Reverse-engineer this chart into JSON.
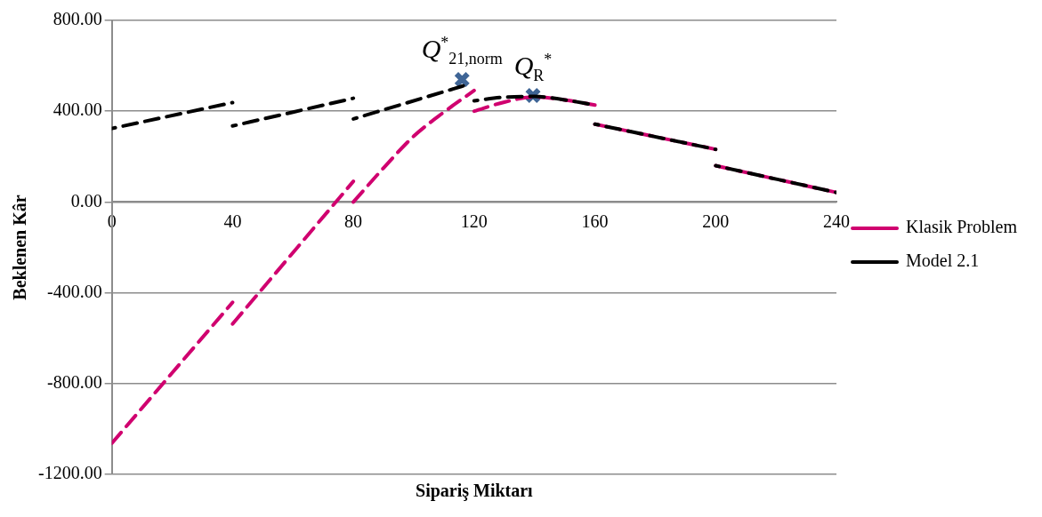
{
  "chart_data": {
    "type": "line",
    "xlabel": "Sipariş Miktarı",
    "ylabel": "Beklenen Kâr",
    "xlim": [
      0,
      240
    ],
    "xticks": [
      0,
      40,
      80,
      120,
      160,
      200,
      240
    ],
    "ylim": [
      -1200,
      800
    ],
    "yticks": [
      {
        "value": -1200,
        "label": "-1200.00"
      },
      {
        "value": -800,
        "label": "-800.00"
      },
      {
        "value": -400,
        "label": "-400.00"
      },
      {
        "value": 0,
        "label": "0.00"
      },
      {
        "value": 400,
        "label": "400.00"
      },
      {
        "value": 800,
        "label": "800.00"
      }
    ],
    "grid": "y",
    "legend": "right",
    "line_style": "dashed",
    "marker": "none",
    "series": [
      {
        "name": "Klasik Problem",
        "color": "#d0006f",
        "x": [
          0,
          40,
          null,
          40,
          80,
          null,
          80,
          90,
          100,
          110,
          120,
          null,
          120,
          130,
          140,
          150,
          160,
          null,
          160,
          200,
          null,
          200,
          240
        ],
        "values": [
          -1063,
          -442,
          null,
          -537,
          91,
          null,
          0,
          150,
          290,
          396,
          491,
          null,
          400,
          440,
          463,
          450,
          427,
          null,
          343,
          232,
          null,
          160,
          42
        ]
      },
      {
        "name": "Model 2.1",
        "color": "#000000",
        "x": [
          0,
          40,
          null,
          40,
          80,
          null,
          80,
          118,
          null,
          120,
          130,
          140,
          150,
          160,
          null,
          160,
          200,
          null,
          200,
          240
        ],
        "values": [
          324,
          438,
          null,
          335,
          457,
          null,
          366,
          518,
          null,
          446,
          462,
          465,
          450,
          427,
          null,
          343,
          232,
          null,
          160,
          42
        ]
      },
      {
        "type": "scatter",
        "marker": "cross",
        "color": "#3f6596",
        "x": [
          116,
          139.5
        ],
        "values": [
          540,
          469
        ]
      }
    ],
    "annotations": [
      {
        "text": "Q$^{*}$$_{21,norm}$",
        "x": 116,
        "y": 540
      },
      {
        "text": "Q$_{R}$$^{*}$",
        "x": 139.5,
        "y": 469
      }
    ]
  }
}
